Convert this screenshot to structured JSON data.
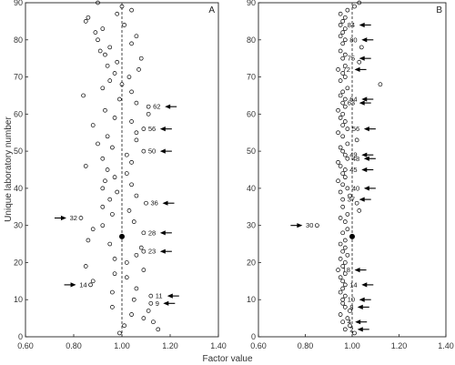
{
  "chart_data": {
    "type": "scatter",
    "xlabel": "Factor value",
    "ylabel": "Unique laboratory number",
    "xlim": [
      0.6,
      1.4
    ],
    "ylim": [
      0,
      90
    ],
    "x_ticks": [
      "0.60",
      "0.80",
      "1.00",
      "1.20",
      "1.40"
    ],
    "y_ticks": [
      "0",
      "10",
      "20",
      "30",
      "40",
      "50",
      "60",
      "70",
      "80",
      "90"
    ],
    "reference_line": {
      "x": 1.0,
      "style": "dashed"
    },
    "marker_color": "#000000",
    "panels": [
      {
        "letter": "A",
        "reference_point": {
          "x": 1.0,
          "y": 27
        },
        "points": [
          {
            "y": 1,
            "x": 0.99
          },
          {
            "y": 2,
            "x": 1.15
          },
          {
            "y": 3,
            "x": 1.01
          },
          {
            "y": 4,
            "x": 1.13
          },
          {
            "y": 5,
            "x": 1.09
          },
          {
            "y": 6,
            "x": 1.04
          },
          {
            "y": 7,
            "x": 1.11
          },
          {
            "y": 8,
            "x": 0.96
          },
          {
            "y": 9,
            "x": 1.12
          },
          {
            "y": 10,
            "x": 1.05
          },
          {
            "y": 11,
            "x": 1.12
          },
          {
            "y": 12,
            "x": 0.96
          },
          {
            "y": 13,
            "x": 1.06
          },
          {
            "y": 14,
            "x": 0.87
          },
          {
            "y": 15,
            "x": 0.88
          },
          {
            "y": 16,
            "x": 1.02
          },
          {
            "y": 17,
            "x": 0.97
          },
          {
            "y": 18,
            "x": 1.09
          },
          {
            "y": 19,
            "x": 0.85
          },
          {
            "y": 20,
            "x": 1.02
          },
          {
            "y": 21,
            "x": 0.97
          },
          {
            "y": 22,
            "x": 1.06
          },
          {
            "y": 23,
            "x": 1.09
          },
          {
            "y": 24,
            "x": 1.08
          },
          {
            "y": 25,
            "x": 0.95
          },
          {
            "y": 26,
            "x": 0.86
          },
          {
            "y": 27,
            "x": 1.0
          },
          {
            "y": 28,
            "x": 1.09
          },
          {
            "y": 29,
            "x": 0.88
          },
          {
            "y": 30,
            "x": 0.92
          },
          {
            "y": 31,
            "x": 1.05
          },
          {
            "y": 32,
            "x": 0.83
          },
          {
            "y": 33,
            "x": 0.96
          },
          {
            "y": 34,
            "x": 1.03
          },
          {
            "y": 35,
            "x": 0.92
          },
          {
            "y": 36,
            "x": 1.1
          },
          {
            "y": 37,
            "x": 0.95
          },
          {
            "y": 38,
            "x": 1.06
          },
          {
            "y": 39,
            "x": 0.98
          },
          {
            "y": 40,
            "x": 0.92
          },
          {
            "y": 41,
            "x": 1.04
          },
          {
            "y": 42,
            "x": 0.93
          },
          {
            "y": 43,
            "x": 0.97
          },
          {
            "y": 44,
            "x": 1.02
          },
          {
            "y": 45,
            "x": 0.94
          },
          {
            "y": 46,
            "x": 0.85
          },
          {
            "y": 47,
            "x": 1.04
          },
          {
            "y": 48,
            "x": 0.92
          },
          {
            "y": 49,
            "x": 1.02
          },
          {
            "y": 50,
            "x": 1.09
          },
          {
            "y": 51,
            "x": 0.96
          },
          {
            "y": 52,
            "x": 0.9
          },
          {
            "y": 53,
            "x": 1.06
          },
          {
            "y": 54,
            "x": 0.94
          },
          {
            "y": 55,
            "x": 1.06
          },
          {
            "y": 56,
            "x": 1.09
          },
          {
            "y": 57,
            "x": 0.88
          },
          {
            "y": 58,
            "x": 1.04
          },
          {
            "y": 59,
            "x": 0.97
          },
          {
            "y": 60,
            "x": 1.11
          },
          {
            "y": 61,
            "x": 0.93
          },
          {
            "y": 62,
            "x": 1.11
          },
          {
            "y": 63,
            "x": 1.06
          },
          {
            "y": 64,
            "x": 0.99
          },
          {
            "y": 65,
            "x": 0.84
          },
          {
            "y": 66,
            "x": 1.04
          },
          {
            "y": 67,
            "x": 0.92
          },
          {
            "y": 68,
            "x": 1.0
          },
          {
            "y": 69,
            "x": 0.95
          },
          {
            "y": 70,
            "x": 1.03
          },
          {
            "y": 71,
            "x": 0.97
          },
          {
            "y": 72,
            "x": 1.07
          },
          {
            "y": 73,
            "x": 0.94
          },
          {
            "y": 74,
            "x": 0.98
          },
          {
            "y": 75,
            "x": 1.08
          },
          {
            "y": 76,
            "x": 0.93
          },
          {
            "y": 77,
            "x": 0.91
          },
          {
            "y": 78,
            "x": 0.95
          },
          {
            "y": 79,
            "x": 1.04
          },
          {
            "y": 80,
            "x": 0.9
          },
          {
            "y": 81,
            "x": 1.06
          },
          {
            "y": 82,
            "x": 0.89
          },
          {
            "y": 83,
            "x": 0.92
          },
          {
            "y": 84,
            "x": 1.01
          },
          {
            "y": 85,
            "x": 0.85
          },
          {
            "y": 86,
            "x": 0.86
          },
          {
            "y": 87,
            "x": 0.98
          },
          {
            "y": 88,
            "x": 1.04
          },
          {
            "y": 89,
            "x": 1.0
          },
          {
            "y": 90,
            "x": 0.9
          }
        ],
        "labeled_points": [
          {
            "label": "62",
            "x": 1.11,
            "y": 62,
            "arrow": "left"
          },
          {
            "label": "56",
            "x": 1.09,
            "y": 56,
            "arrow": "left"
          },
          {
            "label": "50",
            "x": 1.09,
            "y": 50,
            "arrow": "left"
          },
          {
            "label": "36",
            "x": 1.1,
            "y": 36,
            "arrow": "left"
          },
          {
            "label": "32",
            "x": 0.83,
            "y": 32,
            "arrow": "right"
          },
          {
            "label": "28",
            "x": 1.09,
            "y": 28,
            "arrow": "left"
          },
          {
            "label": "23",
            "x": 1.09,
            "y": 23,
            "arrow": "left"
          },
          {
            "label": "14",
            "x": 0.87,
            "y": 14,
            "arrow": "right"
          },
          {
            "label": "11",
            "x": 1.12,
            "y": 11,
            "arrow": "left"
          },
          {
            "label": "9",
            "x": 1.12,
            "y": 9,
            "arrow": "left"
          }
        ]
      },
      {
        "letter": "B",
        "reference_point": {
          "x": 1.0,
          "y": 27
        },
        "points": [
          {
            "y": 1,
            "x": 1.01
          },
          {
            "y": 2,
            "x": 0.97
          },
          {
            "y": 3,
            "x": 0.99
          },
          {
            "y": 4,
            "x": 0.96
          },
          {
            "y": 5,
            "x": 0.98
          },
          {
            "y": 6,
            "x": 0.95
          },
          {
            "y": 7,
            "x": 0.99
          },
          {
            "y": 8,
            "x": 0.97
          },
          {
            "y": 9,
            "x": 0.96
          },
          {
            "y": 10,
            "x": 0.96
          },
          {
            "y": 11,
            "x": 0.97
          },
          {
            "y": 12,
            "x": 0.95
          },
          {
            "y": 13,
            "x": 0.96
          },
          {
            "y": 14,
            "x": 0.97
          },
          {
            "y": 15,
            "x": 0.96
          },
          {
            "y": 16,
            "x": 0.95
          },
          {
            "y": 17,
            "x": 0.97
          },
          {
            "y": 18,
            "x": 0.94
          },
          {
            "y": 19,
            "x": 0.96
          },
          {
            "y": 20,
            "x": 0.97
          },
          {
            "y": 21,
            "x": 0.95
          },
          {
            "y": 22,
            "x": 0.98
          },
          {
            "y": 23,
            "x": 0.96
          },
          {
            "y": 24,
            "x": 0.97
          },
          {
            "y": 25,
            "x": 0.95
          },
          {
            "y": 26,
            "x": 0.97
          },
          {
            "y": 27,
            "x": 1.0
          },
          {
            "y": 28,
            "x": 0.96
          },
          {
            "y": 29,
            "x": 0.98
          },
          {
            "y": 30,
            "x": 0.85
          },
          {
            "y": 31,
            "x": 0.97
          },
          {
            "y": 32,
            "x": 0.95
          },
          {
            "y": 33,
            "x": 0.98
          },
          {
            "y": 34,
            "x": 1.03
          },
          {
            "y": 35,
            "x": 0.96
          },
          {
            "y": 36,
            "x": 1.02
          },
          {
            "y": 37,
            "x": 0.96
          },
          {
            "y": 38,
            "x": 0.99
          },
          {
            "y": 39,
            "x": 0.95
          },
          {
            "y": 40,
            "x": 0.98
          },
          {
            "y": 41,
            "x": 0.96
          },
          {
            "y": 42,
            "x": 0.94
          },
          {
            "y": 43,
            "x": 0.97
          },
          {
            "y": 44,
            "x": 0.96
          },
          {
            "y": 45,
            "x": 0.97
          },
          {
            "y": 46,
            "x": 0.95
          },
          {
            "y": 47,
            "x": 0.94
          },
          {
            "y": 48,
            "x": 0.98
          },
          {
            "y": 49,
            "x": 0.97
          },
          {
            "y": 50,
            "x": 0.96
          },
          {
            "y": 51,
            "x": 0.95
          },
          {
            "y": 52,
            "x": 0.98
          },
          {
            "y": 53,
            "x": 1.02
          },
          {
            "y": 54,
            "x": 0.96
          },
          {
            "y": 55,
            "x": 0.94
          },
          {
            "y": 56,
            "x": 0.98
          },
          {
            "y": 57,
            "x": 0.96
          },
          {
            "y": 58,
            "x": 0.97
          },
          {
            "y": 59,
            "x": 0.95
          },
          {
            "y": 60,
            "x": 0.96
          },
          {
            "y": 61,
            "x": 0.94
          },
          {
            "y": 62,
            "x": 0.97
          },
          {
            "y": 63,
            "x": 0.96
          },
          {
            "y": 64,
            "x": 0.97
          },
          {
            "y": 65,
            "x": 0.95
          },
          {
            "y": 66,
            "x": 0.96
          },
          {
            "y": 67,
            "x": 0.98
          },
          {
            "y": 68,
            "x": 1.12
          },
          {
            "y": 69,
            "x": 0.95
          },
          {
            "y": 70,
            "x": 0.97
          },
          {
            "y": 71,
            "x": 0.96
          },
          {
            "y": 72,
            "x": 0.94
          },
          {
            "y": 73,
            "x": 0.97
          },
          {
            "y": 74,
            "x": 1.03
          },
          {
            "y": 75,
            "x": 0.96
          },
          {
            "y": 76,
            "x": 0.97
          },
          {
            "y": 77,
            "x": 0.95
          },
          {
            "y": 78,
            "x": 1.04
          },
          {
            "y": 79,
            "x": 0.96
          },
          {
            "y": 80,
            "x": 0.97
          },
          {
            "y": 81,
            "x": 0.95
          },
          {
            "y": 82,
            "x": 0.96
          },
          {
            "y": 83,
            "x": 0.97
          },
          {
            "y": 84,
            "x": 0.95
          },
          {
            "y": 85,
            "x": 0.96
          },
          {
            "y": 86,
            "x": 0.97
          },
          {
            "y": 87,
            "x": 0.95
          },
          {
            "y": 88,
            "x": 0.98
          },
          {
            "y": 89,
            "x": 1.01
          },
          {
            "y": 90,
            "x": 1.03
          }
        ],
        "labeled_points": [
          {
            "label": "84",
            "x": 0.96,
            "y": 84,
            "arrow": "left"
          },
          {
            "label": "80",
            "x": 0.97,
            "y": 80,
            "arrow": "left"
          },
          {
            "label": "75",
            "x": 0.96,
            "y": 75,
            "arrow": "left"
          },
          {
            "label": "72",
            "x": 0.94,
            "y": 72,
            "arrow": "left"
          },
          {
            "label": "64",
            "x": 0.97,
            "y": 64,
            "arrow": "left"
          },
          {
            "label": "63",
            "x": 0.96,
            "y": 63,
            "arrow": "left"
          },
          {
            "label": "56",
            "x": 0.98,
            "y": 56,
            "arrow": "left"
          },
          {
            "label": "49",
            "x": 0.97,
            "y": 49,
            "arrow": "left"
          },
          {
            "label": "48",
            "x": 0.98,
            "y": 48,
            "arrow": "left"
          },
          {
            "label": "45",
            "x": 0.97,
            "y": 45,
            "arrow": "left"
          },
          {
            "label": "40",
            "x": 0.98,
            "y": 40,
            "arrow": "left"
          },
          {
            "label": "37",
            "x": 0.96,
            "y": 37,
            "arrow": "left"
          },
          {
            "label": "30",
            "x": 0.85,
            "y": 30,
            "arrow": "right"
          },
          {
            "label": "18",
            "x": 0.94,
            "y": 18,
            "arrow": "left"
          },
          {
            "label": "14",
            "x": 0.97,
            "y": 14,
            "arrow": "left"
          },
          {
            "label": "10",
            "x": 0.96,
            "y": 10,
            "arrow": "left"
          },
          {
            "label": "8",
            "x": 0.97,
            "y": 8,
            "arrow": "left"
          },
          {
            "label": "4",
            "x": 0.96,
            "y": 4,
            "arrow": "left"
          },
          {
            "label": "2",
            "x": 0.97,
            "y": 2,
            "arrow": "left"
          }
        ]
      }
    ]
  }
}
